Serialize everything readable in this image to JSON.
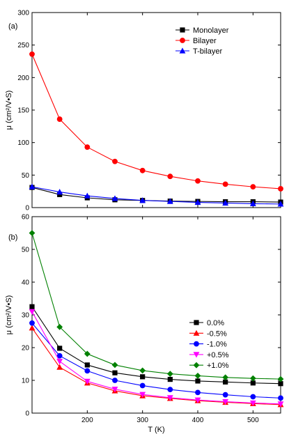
{
  "chart_data": [
    {
      "type": "line",
      "panel_label": "(a)",
      "xlabel": "",
      "ylabel": "μ (cm²/V•S)",
      "xlim": [
        100,
        550
      ],
      "ylim": [
        0,
        300
      ],
      "x_ticks": [
        200,
        300,
        400,
        500
      ],
      "y_ticks": [
        0,
        50,
        100,
        150,
        200,
        250,
        300
      ],
      "show_x_tick_labels": false,
      "legend_position": "top-right",
      "x": [
        100,
        150,
        200,
        250,
        300,
        350,
        400,
        450,
        500,
        550
      ],
      "series": [
        {
          "name": "Monolayer",
          "color": "#000000",
          "marker": "square",
          "values": [
            31,
            20,
            15,
            12,
            11,
            10,
            9.5,
            9,
            9,
            8.5
          ]
        },
        {
          "name": "Bilayer",
          "color": "#ff0000",
          "marker": "circle",
          "values": [
            236,
            136,
            93,
            71,
            57,
            48,
            41,
            36,
            32,
            29
          ]
        },
        {
          "name": "T-bilayer",
          "color": "#0000ff",
          "marker": "triangle-up",
          "values": [
            32,
            24,
            18,
            14,
            11,
            9.5,
            8,
            7,
            6,
            5.5
          ]
        }
      ]
    },
    {
      "type": "line",
      "panel_label": "(b)",
      "xlabel": "T (K)",
      "ylabel": "μ (cm²/V•S)",
      "xlim": [
        100,
        550
      ],
      "ylim": [
        0,
        60
      ],
      "x_ticks": [
        200,
        300,
        400,
        500
      ],
      "y_ticks": [
        0,
        10,
        20,
        30,
        40,
        50,
        60
      ],
      "show_x_tick_labels": true,
      "legend_position": "top-right",
      "x": [
        100,
        150,
        200,
        250,
        300,
        350,
        400,
        450,
        500,
        550
      ],
      "series": [
        {
          "name": "0.0%",
          "color": "#000000",
          "marker": "square",
          "values": [
            32.5,
            19.8,
            14.7,
            12.3,
            11.1,
            10.3,
            9.8,
            9.5,
            9.2,
            9.0
          ]
        },
        {
          "name": "-0.5%",
          "color": "#ff0000",
          "marker": "triangle-up",
          "values": [
            26,
            14,
            9.2,
            6.8,
            5.3,
            4.5,
            3.8,
            3.3,
            2.9,
            2.6
          ]
        },
        {
          "name": "-1.0%",
          "color": "#0000ff",
          "marker": "circle",
          "values": [
            27.5,
            17.5,
            12.9,
            10.0,
            8.4,
            7.2,
            6.3,
            5.6,
            5.0,
            4.6
          ]
        },
        {
          "name": "+0.5%",
          "color": "#ff00ff",
          "marker": "triangle-down",
          "values": [
            31,
            15.8,
            9.7,
            7.3,
            5.7,
            4.7,
            4.0,
            3.5,
            3.1,
            2.8
          ]
        },
        {
          "name": "+1.0%",
          "color": "#008000",
          "marker": "diamond",
          "values": [
            55,
            26.3,
            18.1,
            14.7,
            13.0,
            12.0,
            11.4,
            10.9,
            10.6,
            10.4
          ]
        }
      ]
    }
  ]
}
